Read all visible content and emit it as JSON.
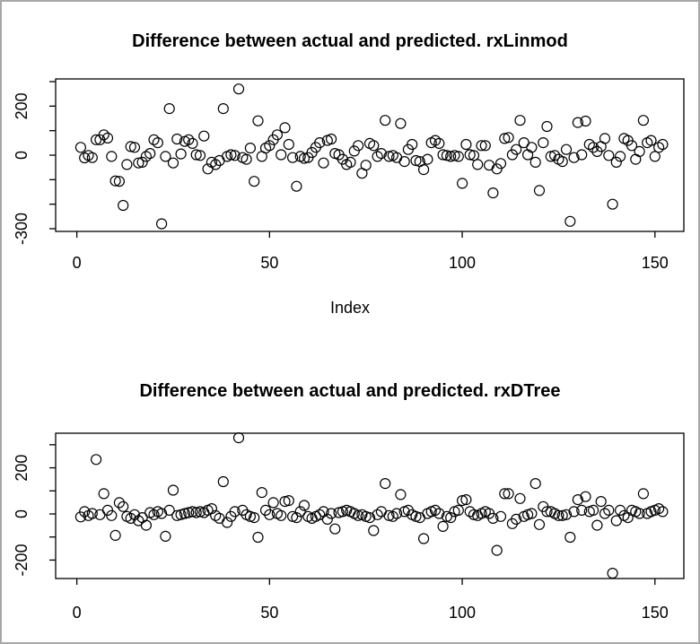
{
  "page": {
    "background_color": "#ffffff",
    "border_color": "#a8a8a8",
    "plot_stroke_color": "#000000"
  },
  "chart_data": [
    {
      "type": "scatter",
      "title": "Difference between actual and predicted. rxLinmod",
      "xlabel": "Index",
      "ylabel": "",
      "marker": "open-circle",
      "grid": false,
      "x_tick_labels": [
        0,
        50,
        100,
        150
      ],
      "y_tick_values": [
        300,
        200,
        100,
        0,
        -100,
        -200,
        -300
      ],
      "y_tick_labels_shown": [
        200,
        0,
        -300
      ],
      "xlim": [
        -5.5,
        157.5
      ],
      "ylim": [
        -311,
        311
      ],
      "x_start_index": 1,
      "values": [
        32,
        -11,
        -1,
        -10,
        63,
        63,
        83,
        70,
        -5,
        -105,
        -107,
        -205,
        -38,
        35,
        32,
        -32,
        -29,
        -5,
        7,
        63,
        51,
        -280,
        -5,
        190,
        -32,
        66,
        5,
        56,
        63,
        48,
        2,
        -1,
        78,
        -56,
        -29,
        -38,
        -22,
        190,
        -5,
        2,
        -1,
        270,
        -10,
        -17,
        29,
        -107,
        140,
        -5,
        29,
        39,
        63,
        83,
        2,
        112,
        44,
        -10,
        -127,
        -5,
        -13,
        -10,
        11,
        32,
        51,
        -32,
        60,
        66,
        7,
        2,
        -17,
        -38,
        -29,
        17,
        39,
        -74,
        -41,
        48,
        39,
        -5,
        7,
        142,
        -5,
        -1,
        -10,
        129,
        -26,
        23,
        44,
        -22,
        -26,
        -59,
        -17,
        51,
        60,
        48,
        2,
        -1,
        -5,
        -1,
        -5,
        -115,
        44,
        2,
        -1,
        -38,
        39,
        39,
        -41,
        -154,
        -56,
        -34,
        68,
        72,
        2,
        23,
        142,
        51,
        2,
        32,
        -29,
        -144,
        51,
        117,
        -5,
        -1,
        -17,
        -26,
        23,
        -270,
        -10,
        133,
        2,
        139,
        44,
        32,
        15,
        35,
        68,
        -1,
        -200,
        -29,
        -5,
        68,
        60,
        39,
        -17,
        15,
        142,
        51,
        60,
        -5,
        32,
        44
      ]
    },
    {
      "type": "scatter",
      "title": "Difference between actual and predicted. rxDTree",
      "xlabel": "",
      "ylabel": "",
      "marker": "open-circle",
      "grid": false,
      "x_tick_labels": [
        0,
        50,
        100,
        150
      ],
      "y_tick_values": [
        300,
        200,
        100,
        0,
        -100,
        -200
      ],
      "y_tick_labels_shown": [
        200,
        0,
        -200
      ],
      "xlim": [
        -5.5,
        157.5
      ],
      "ylim": [
        -280,
        350
      ],
      "x_start_index": 1,
      "values": [
        -13,
        10,
        -7,
        2,
        236,
        -3,
        88,
        16,
        -7,
        -93,
        49,
        32,
        -11,
        -19,
        -3,
        -29,
        -16,
        -49,
        6,
        -3,
        10,
        2,
        -97,
        16,
        103,
        -7,
        -3,
        2,
        6,
        10,
        6,
        10,
        6,
        16,
        23,
        -7,
        -19,
        140,
        -37,
        -11,
        10,
        330,
        16,
        -3,
        -11,
        -16,
        -101,
        93,
        16,
        -3,
        49,
        2,
        -7,
        54,
        58,
        -11,
        -16,
        10,
        37,
        -11,
        -19,
        -11,
        -3,
        10,
        -23,
        2,
        -65,
        6,
        10,
        16,
        10,
        2,
        -7,
        -3,
        -11,
        -16,
        -72,
        -3,
        10,
        132,
        -7,
        -11,
        2,
        84,
        10,
        16,
        -3,
        -11,
        -16,
        -107,
        2,
        10,
        16,
        2,
        -54,
        -11,
        -16,
        10,
        16,
        58,
        62,
        10,
        -3,
        -7,
        2,
        10,
        2,
        -19,
        -158,
        -11,
        88,
        88,
        -42,
        -23,
        67,
        -11,
        -3,
        2,
        132,
        -46,
        32,
        10,
        10,
        2,
        -7,
        -7,
        -3,
        -101,
        10,
        62,
        16,
        75,
        10,
        16,
        -49,
        54,
        2,
        16,
        -257,
        -29,
        16,
        -7,
        -16,
        16,
        10,
        2,
        88,
        2,
        10,
        16,
        23,
        10
      ]
    }
  ]
}
